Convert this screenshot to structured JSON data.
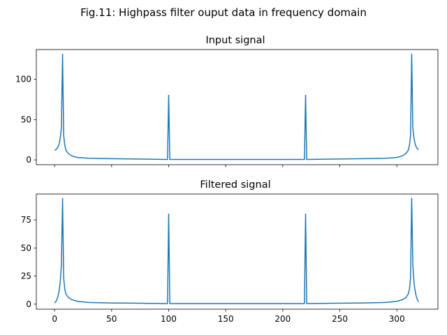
{
  "figure_title": "Fig.11: Highpass filter ouput data in frequency domain",
  "chart_data": [
    {
      "type": "line",
      "title": "Input signal",
      "xlabel": "",
      "ylabel": "",
      "xlim": [
        -16,
        336
      ],
      "ylim": [
        -6,
        137
      ],
      "x_ticks": [
        0,
        50,
        100,
        150,
        200,
        250,
        300
      ],
      "x_tick_labels_shown": false,
      "y_ticks": [
        0,
        50,
        100
      ],
      "grid": false,
      "series_color": "#1f77b4",
      "peaks": [
        {
          "x": 7,
          "y": 131
        },
        {
          "x": 100,
          "y": 80
        },
        {
          "x": 220,
          "y": 80
        },
        {
          "x": 313,
          "y": 131
        }
      ],
      "x": [
        0,
        1,
        2,
        3,
        4,
        5,
        6,
        7,
        8,
        9,
        10,
        12,
        15,
        20,
        30,
        50,
        75,
        98,
        99,
        100,
        101,
        102,
        120,
        160,
        200,
        218,
        219,
        220,
        221,
        222,
        245,
        270,
        290,
        300,
        305,
        308,
        310,
        311,
        312,
        313,
        314,
        315,
        316,
        317,
        318,
        319
      ],
      "y": [
        12,
        12.5,
        14,
        16,
        20,
        27,
        40,
        131,
        30,
        18,
        12,
        8,
        5,
        3,
        2,
        1.5,
        1,
        0.5,
        0.5,
        80,
        0.5,
        0.5,
        0.5,
        0.5,
        0.5,
        0.5,
        0.5,
        80,
        0.5,
        0.5,
        1,
        1.5,
        2,
        3,
        5,
        8,
        12,
        18,
        30,
        131,
        40,
        27,
        20,
        16,
        14,
        12.5
      ]
    },
    {
      "type": "line",
      "title": "Filtered signal",
      "xlabel": "",
      "ylabel": "",
      "xlim": [
        -16,
        336
      ],
      "ylim": [
        -4.5,
        98
      ],
      "x_ticks": [
        0,
        50,
        100,
        150,
        200,
        250,
        300
      ],
      "x_tick_labels_shown": true,
      "y_ticks": [
        0,
        25,
        50,
        75
      ],
      "grid": false,
      "series_color": "#1f77b4",
      "peaks": [
        {
          "x": 7,
          "y": 94
        },
        {
          "x": 100,
          "y": 80
        },
        {
          "x": 220,
          "y": 80
        },
        {
          "x": 313,
          "y": 94
        }
      ],
      "x": [
        0,
        1,
        2,
        3,
        4,
        5,
        6,
        7,
        8,
        9,
        10,
        12,
        15,
        20,
        30,
        50,
        75,
        98,
        99,
        100,
        101,
        102,
        120,
        160,
        200,
        218,
        219,
        220,
        221,
        222,
        245,
        270,
        290,
        300,
        305,
        308,
        310,
        311,
        312,
        313,
        314,
        315,
        316,
        317,
        318,
        319
      ],
      "y": [
        1,
        2,
        4,
        7,
        12,
        20,
        35,
        94,
        23,
        13,
        9,
        6,
        4,
        2.5,
        1.5,
        1,
        0.8,
        0.5,
        0.5,
        80,
        0.5,
        0.5,
        0.5,
        0.5,
        0.5,
        0.5,
        0.5,
        80,
        0.5,
        0.5,
        0.8,
        1,
        1.5,
        2.5,
        4,
        6,
        9,
        13,
        23,
        94,
        35,
        20,
        12,
        7,
        4,
        2
      ]
    }
  ]
}
